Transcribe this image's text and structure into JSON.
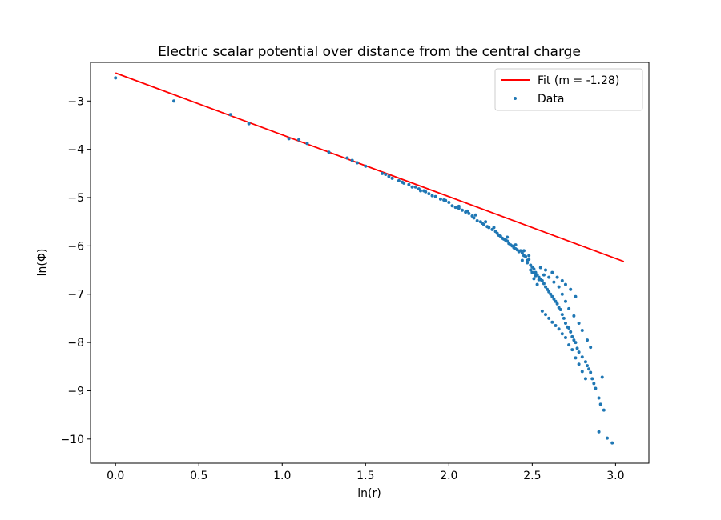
{
  "chart_data": {
    "type": "scatter",
    "title": "Electric scalar potential over distance from the central charge",
    "xlabel": "ln(r)",
    "ylabel": "ln(Φ)",
    "xlim": [
      -0.15,
      3.2
    ],
    "ylim": [
      -10.5,
      -2.2
    ],
    "grid": false,
    "legend_position": "top-right",
    "xticks": [
      0.0,
      0.5,
      1.0,
      1.5,
      2.0,
      2.5,
      3.0
    ],
    "xtick_labels": [
      "0.0",
      "0.5",
      "1.0",
      "1.5",
      "2.0",
      "2.5",
      "3.0"
    ],
    "yticks": [
      -3,
      -4,
      -5,
      -6,
      -7,
      -8,
      -9,
      -10
    ],
    "ytick_labels": [
      "−3",
      "−4",
      "−5",
      "−6",
      "−7",
      "−8",
      "−9",
      "−10"
    ],
    "fit": {
      "name": "Fit (m = -1.28)",
      "color": "#ff0000",
      "slope": -1.28,
      "intercept": -2.42,
      "x_range": [
        0.0,
        3.05
      ]
    },
    "scatter": {
      "name": "Data",
      "color": "#1f77b4",
      "points": [
        [
          0.0,
          -2.52
        ],
        [
          0.35,
          -3.0
        ],
        [
          0.69,
          -3.28
        ],
        [
          0.8,
          -3.47
        ],
        [
          1.04,
          -3.78
        ],
        [
          1.1,
          -3.8
        ],
        [
          1.15,
          -3.88
        ],
        [
          1.28,
          -4.06
        ],
        [
          1.39,
          -4.18
        ],
        [
          1.42,
          -4.23
        ],
        [
          1.45,
          -4.28
        ],
        [
          1.5,
          -4.35
        ],
        [
          1.6,
          -4.5
        ],
        [
          1.62,
          -4.52
        ],
        [
          1.66,
          -4.6
        ],
        [
          1.7,
          -4.65
        ],
        [
          1.73,
          -4.7
        ],
        [
          1.76,
          -4.73
        ],
        [
          1.78,
          -4.78
        ],
        [
          1.8,
          -4.78
        ],
        [
          1.82,
          -4.82
        ],
        [
          1.85,
          -4.86
        ],
        [
          1.86,
          -4.88
        ],
        [
          1.9,
          -4.96
        ],
        [
          1.92,
          -4.98
        ],
        [
          1.95,
          -5.03
        ],
        [
          1.97,
          -5.05
        ],
        [
          2.0,
          -5.1
        ],
        [
          2.02,
          -5.17
        ],
        [
          2.04,
          -5.2
        ],
        [
          2.06,
          -5.22
        ],
        [
          2.08,
          -5.26
        ],
        [
          2.1,
          -5.3
        ],
        [
          2.12,
          -5.33
        ],
        [
          2.14,
          -5.38
        ],
        [
          2.15,
          -5.42
        ],
        [
          2.17,
          -5.48
        ],
        [
          2.19,
          -5.5
        ],
        [
          2.2,
          -5.53
        ],
        [
          2.21,
          -5.56
        ],
        [
          2.23,
          -5.6
        ],
        [
          2.24,
          -5.62
        ],
        [
          2.26,
          -5.66
        ],
        [
          2.28,
          -5.7
        ],
        [
          2.29,
          -5.74
        ],
        [
          2.3,
          -5.78
        ],
        [
          2.31,
          -5.8
        ],
        [
          2.32,
          -5.84
        ],
        [
          2.33,
          -5.86
        ],
        [
          2.34,
          -5.88
        ],
        [
          2.35,
          -5.9
        ],
        [
          2.36,
          -5.95
        ],
        [
          2.37,
          -5.98
        ],
        [
          2.38,
          -6.0
        ],
        [
          2.39,
          -6.04
        ],
        [
          2.4,
          -6.06
        ],
        [
          2.41,
          -6.08
        ],
        [
          2.42,
          -6.12
        ],
        [
          2.43,
          -6.1
        ],
        [
          2.44,
          -6.15
        ],
        [
          2.45,
          -6.2
        ],
        [
          2.46,
          -6.22
        ],
        [
          2.47,
          -6.3
        ],
        [
          2.48,
          -6.28
        ],
        [
          2.49,
          -6.4
        ],
        [
          2.5,
          -6.44
        ],
        [
          2.51,
          -6.48
        ],
        [
          2.52,
          -6.55
        ],
        [
          2.53,
          -6.6
        ],
        [
          2.54,
          -6.65
        ],
        [
          2.55,
          -6.7
        ],
        [
          2.56,
          -6.72
        ],
        [
          2.57,
          -6.78
        ],
        [
          2.58,
          -6.85
        ],
        [
          2.59,
          -6.9
        ],
        [
          2.6,
          -6.95
        ],
        [
          2.61,
          -7.0
        ],
        [
          2.62,
          -7.05
        ],
        [
          2.63,
          -7.1
        ],
        [
          2.64,
          -7.15
        ],
        [
          2.65,
          -7.2
        ],
        [
          2.66,
          -7.28
        ],
        [
          2.67,
          -7.32
        ],
        [
          2.68,
          -7.42
        ],
        [
          2.69,
          -7.5
        ],
        [
          2.7,
          -7.6
        ],
        [
          2.71,
          -7.68
        ],
        [
          2.72,
          -7.7
        ],
        [
          2.73,
          -7.78
        ],
        [
          2.74,
          -7.88
        ],
        [
          2.75,
          -7.95
        ],
        [
          2.76,
          -8.0
        ],
        [
          2.77,
          -8.12
        ],
        [
          2.78,
          -8.2
        ],
        [
          2.8,
          -8.3
        ],
        [
          2.82,
          -8.4
        ],
        [
          2.83,
          -8.48
        ],
        [
          2.84,
          -8.55
        ],
        [
          2.85,
          -8.62
        ],
        [
          2.86,
          -8.75
        ],
        [
          2.87,
          -8.85
        ],
        [
          2.88,
          -8.95
        ],
        [
          2.9,
          -9.15
        ],
        [
          2.91,
          -9.28
        ],
        [
          2.93,
          -9.4
        ],
        [
          2.92,
          -8.72
        ],
        [
          2.95,
          -9.98
        ],
        [
          2.98,
          -10.08
        ],
        [
          2.9,
          -9.85
        ],
        [
          2.56,
          -7.35
        ],
        [
          2.58,
          -7.42
        ],
        [
          2.6,
          -7.5
        ],
        [
          2.62,
          -7.58
        ],
        [
          2.64,
          -7.65
        ],
        [
          2.66,
          -7.72
        ],
        [
          2.68,
          -7.82
        ],
        [
          2.7,
          -7.9
        ],
        [
          2.72,
          -8.05
        ],
        [
          2.74,
          -8.15
        ],
        [
          2.76,
          -8.32
        ],
        [
          2.78,
          -8.45
        ],
        [
          2.8,
          -8.6
        ],
        [
          2.82,
          -8.75
        ],
        [
          2.5,
          -6.55
        ],
        [
          2.52,
          -6.62
        ],
        [
          2.54,
          -6.7
        ],
        [
          2.57,
          -6.6
        ],
        [
          2.6,
          -6.65
        ],
        [
          2.63,
          -6.75
        ],
        [
          2.66,
          -6.85
        ],
        [
          2.68,
          -7.0
        ],
        [
          2.7,
          -7.15
        ],
        [
          2.72,
          -7.3
        ],
        [
          2.75,
          -7.45
        ],
        [
          2.78,
          -7.6
        ],
        [
          2.8,
          -7.75
        ],
        [
          2.83,
          -7.95
        ],
        [
          2.85,
          -8.1
        ],
        [
          2.55,
          -6.45
        ],
        [
          2.58,
          -6.5
        ],
        [
          2.62,
          -6.55
        ],
        [
          2.65,
          -6.65
        ],
        [
          2.68,
          -6.72
        ],
        [
          2.7,
          -6.8
        ],
        [
          2.73,
          -6.9
        ],
        [
          2.76,
          -7.05
        ],
        [
          2.44,
          -6.3
        ],
        [
          2.47,
          -6.35
        ],
        [
          2.49,
          -6.5
        ],
        [
          2.51,
          -6.68
        ],
        [
          2.53,
          -6.8
        ],
        [
          2.35,
          -5.82
        ],
        [
          2.4,
          -5.98
        ],
        [
          2.45,
          -6.1
        ],
        [
          2.48,
          -6.2
        ],
        [
          2.27,
          -5.62
        ],
        [
          2.22,
          -5.5
        ],
        [
          2.16,
          -5.36
        ],
        [
          2.11,
          -5.28
        ],
        [
          2.06,
          -5.18
        ],
        [
          1.98,
          -5.06
        ],
        [
          1.88,
          -4.92
        ],
        [
          1.83,
          -4.86
        ],
        [
          1.72,
          -4.68
        ],
        [
          1.64,
          -4.56
        ]
      ]
    }
  }
}
